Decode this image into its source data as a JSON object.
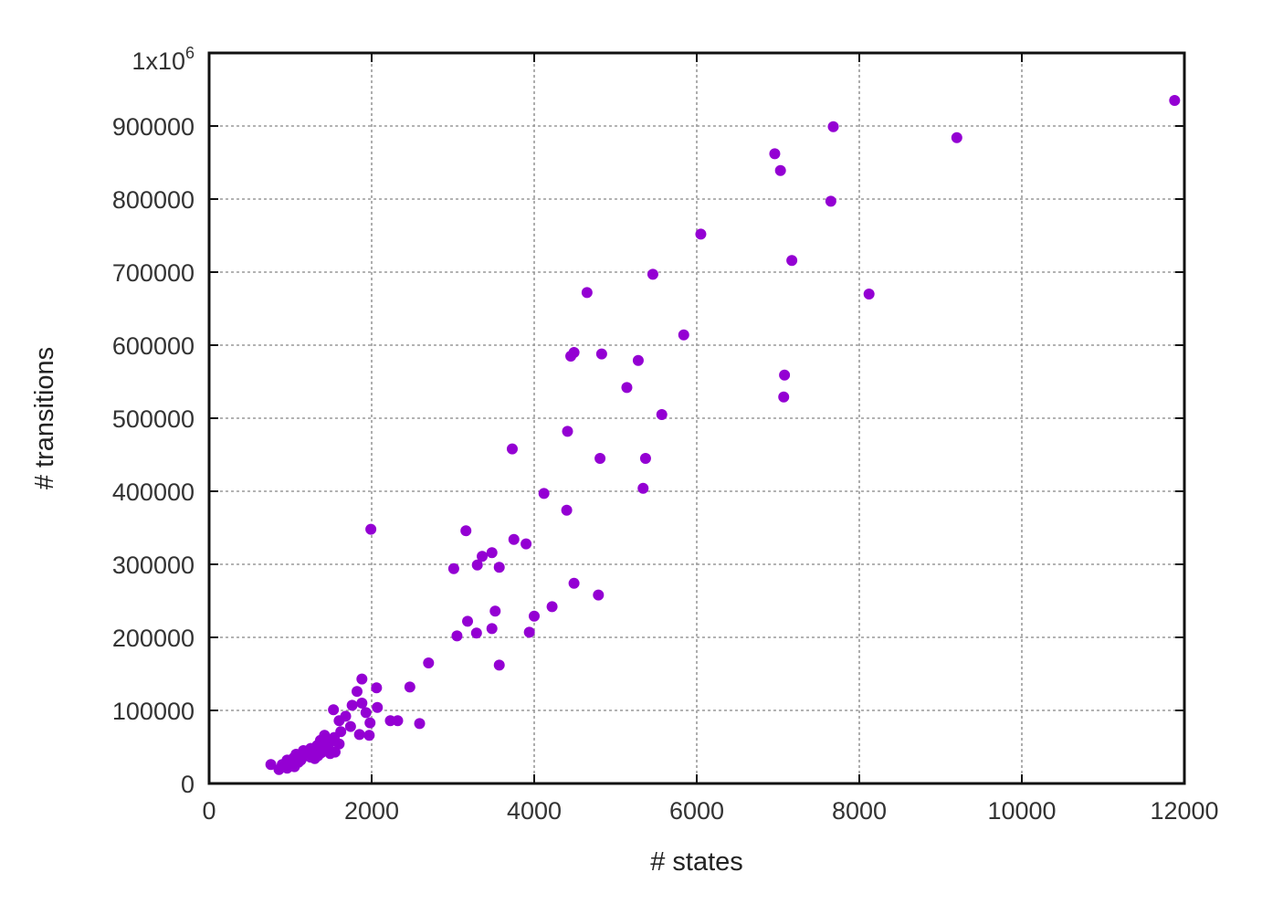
{
  "chart_data": {
    "type": "scatter",
    "title": "",
    "xlabel": "# states",
    "ylabel": "# transitions",
    "xlim": [
      0,
      12000
    ],
    "ylim": [
      0,
      1000000
    ],
    "x_ticks": [
      0,
      2000,
      4000,
      6000,
      8000,
      10000,
      12000
    ],
    "x_tick_labels": [
      "0",
      "2000",
      "4000",
      "6000",
      "8000",
      "10000",
      "12000"
    ],
    "y_ticks": [
      0,
      100000,
      200000,
      300000,
      400000,
      500000,
      600000,
      700000,
      800000,
      900000
    ],
    "y_tick_labels": [
      "0",
      "100000",
      "200000",
      "300000",
      "400000",
      "500000",
      "600000",
      "700000",
      "800000",
      "900000"
    ],
    "y_top_label": {
      "base": "1x10",
      "exponent": "6"
    },
    "grid": true,
    "legend": false,
    "point_color": "#9400d3",
    "series": [
      {
        "points": [
          [
            11880,
            935000
          ],
          [
            9200,
            884000
          ],
          [
            7680,
            899000
          ],
          [
            7650,
            797000
          ],
          [
            6960,
            862000
          ],
          [
            7030,
            839000
          ],
          [
            7170,
            716000
          ],
          [
            8120,
            670000
          ],
          [
            7080,
            559000
          ],
          [
            7070,
            529000
          ],
          [
            6050,
            752000
          ],
          [
            5840,
            614000
          ],
          [
            5460,
            697000
          ],
          [
            5570,
            505000
          ],
          [
            5280,
            579000
          ],
          [
            5140,
            542000
          ],
          [
            5370,
            445000
          ],
          [
            5340,
            404000
          ],
          [
            4650,
            672000
          ],
          [
            4490,
            590000
          ],
          [
            4450,
            585000
          ],
          [
            4830,
            588000
          ],
          [
            4410,
            482000
          ],
          [
            4810,
            445000
          ],
          [
            4400,
            374000
          ],
          [
            4120,
            397000
          ],
          [
            3730,
            458000
          ],
          [
            3750,
            334000
          ],
          [
            3900,
            328000
          ],
          [
            3480,
            316000
          ],
          [
            3360,
            311000
          ],
          [
            3300,
            299000
          ],
          [
            3570,
            296000
          ],
          [
            3160,
            346000
          ],
          [
            3010,
            294000
          ],
          [
            4490,
            274000
          ],
          [
            4790,
            258000
          ],
          [
            4220,
            242000
          ],
          [
            4000,
            229000
          ],
          [
            3940,
            207000
          ],
          [
            3520,
            236000
          ],
          [
            3480,
            212000
          ],
          [
            3570,
            162000
          ],
          [
            3180,
            222000
          ],
          [
            3290,
            206000
          ],
          [
            3050,
            202000
          ],
          [
            2700,
            165000
          ],
          [
            2470,
            132000
          ],
          [
            2590,
            82000
          ],
          [
            2320,
            86000
          ],
          [
            2230,
            86000
          ],
          [
            1990,
            348000
          ],
          [
            1880,
            143000
          ],
          [
            2060,
            131000
          ],
          [
            1820,
            126000
          ],
          [
            2070,
            104000
          ],
          [
            1880,
            110000
          ],
          [
            1930,
            97000
          ],
          [
            1760,
            107000
          ],
          [
            1530,
            101000
          ],
          [
            1680,
            92000
          ],
          [
            1980,
            83000
          ],
          [
            1600,
            86000
          ],
          [
            1740,
            78000
          ],
          [
            1850,
            67000
          ],
          [
            1970,
            66000
          ],
          [
            1620,
            71000
          ],
          [
            1540,
            63000
          ],
          [
            1420,
            66000
          ],
          [
            1370,
            59000
          ],
          [
            1480,
            55000
          ],
          [
            1600,
            54000
          ],
          [
            1330,
            52000
          ],
          [
            1430,
            50000
          ],
          [
            1250,
            48000
          ],
          [
            1290,
            45000
          ],
          [
            1160,
            45000
          ],
          [
            1380,
            42000
          ],
          [
            1070,
            40000
          ],
          [
            1200,
            38000
          ],
          [
            1040,
            35000
          ],
          [
            1300,
            34000
          ],
          [
            1130,
            32000
          ],
          [
            960,
            32000
          ],
          [
            1550,
            43000
          ],
          [
            1490,
            41000
          ],
          [
            1100,
            29000
          ],
          [
            1000,
            27000
          ],
          [
            900,
            26000
          ],
          [
            1050,
            23000
          ],
          [
            960,
            21000
          ],
          [
            860,
            19000
          ],
          [
            760,
            26000
          ],
          [
            1250,
            36000
          ],
          [
            1340,
            38000
          ],
          [
            1190,
            44000
          ]
        ]
      }
    ]
  }
}
